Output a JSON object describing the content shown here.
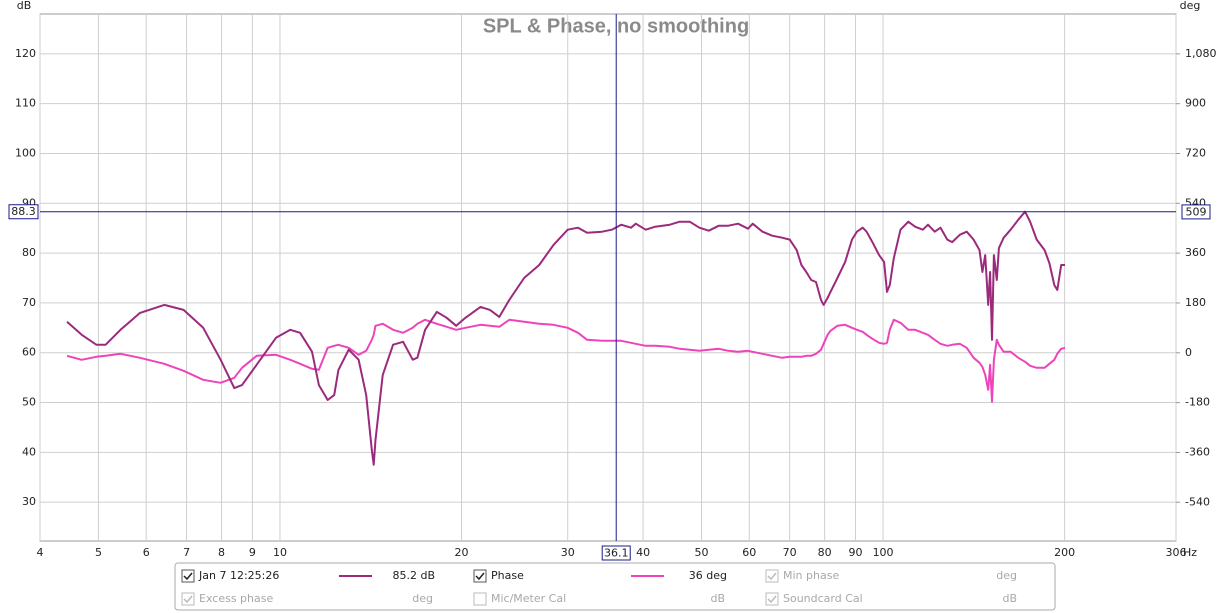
{
  "chart_data": {
    "type": "line",
    "title": "SPL & Phase, no smoothing",
    "y_unit": "dB",
    "y2_unit": "deg",
    "x_unit": "Hz",
    "xscale": "log",
    "grid": true,
    "xlim": [
      4,
      306
    ],
    "xticks": [
      4,
      5,
      6,
      7,
      8,
      9,
      10,
      20,
      30,
      40,
      50,
      60,
      70,
      80,
      90,
      100,
      200,
      306
    ],
    "ylim": [
      22.2,
      128
    ],
    "yticks": [
      30,
      40,
      50,
      60,
      70,
      80,
      90,
      100,
      110,
      120
    ],
    "y2lim": [
      -680,
      1224
    ],
    "y2ticks": [
      -540,
      -360,
      -180,
      0,
      180,
      360,
      540,
      720,
      900,
      {
        "value": 1080,
        "label": "1,080"
      }
    ],
    "cursor": {
      "x": 36.1,
      "y": 88.3,
      "y2": 509,
      "color": "#1a1a8c"
    },
    "x": [
      4.435,
      4.69,
      4.96,
      5.14,
      5.44,
      5.86,
      6.43,
      6.92,
      7.46,
      7.97,
      8.4,
      8.65,
      9.15,
      9.85,
      10.4,
      10.8,
      11.3,
      11.6,
      12.0,
      12.3,
      12.5,
      13.0,
      13.5,
      13.9,
      14.2,
      14.3,
      14.4,
      14.8,
      15.4,
      16.0,
      16.6,
      16.9,
      17.4,
      18.2,
      18.9,
      19.6,
      20.3,
      21.5,
      22.3,
      23.1,
      24.0,
      25.4,
      26.9,
      28.4,
      30.0,
      31.2,
      32.3,
      34.2,
      35.5,
      36.8,
      38.2,
      38.9,
      40.4,
      41.9,
      44.3,
      46.0,
      47.8,
      49.6,
      51.4,
      53.4,
      55.4,
      57.5,
      59.7,
      60.8,
      63.1,
      65.5,
      68.0,
      70.0,
      71.9,
      73.2,
      74.6,
      76.0,
      77.4,
      78.9,
      79.7,
      80.9,
      81.8,
      84.0,
      86.5,
      88.8,
      90.5,
      92.5,
      93.9,
      96.0,
      98.5,
      100.4,
      101.5,
      102.6,
      104.2,
      106.9,
      110.1,
      113.0,
      116.4,
      118.7,
      121.8,
      124.5,
      127.8,
      130.2,
      134.1,
      137.6,
      141.3,
      144.5,
      146.1,
      147.7,
      149.4,
      150.5,
      151.6,
      152.7,
      154.4,
      155.6,
      158.5,
      162.7,
      167.6,
      172.0,
      175.3,
      179.8,
      185.3,
      188.7,
      192.3,
      194.5,
      197.4,
      200.3
    ],
    "series": [
      {
        "name": "Jan 7 12:25:26",
        "color": "#9b2a7d",
        "checked": true,
        "readout": "85.2 dB",
        "values": [
          66.2,
          63.6,
          61.6,
          61.6,
          64.6,
          68.0,
          69.6,
          68.6,
          65.0,
          58.6,
          52.9,
          53.5,
          57.6,
          63.0,
          64.6,
          64.0,
          60.2,
          53.5,
          50.5,
          51.5,
          56.5,
          60.6,
          58.6,
          51.5,
          40.5,
          37.5,
          42.5,
          55.5,
          61.6,
          62.2,
          58.6,
          59.0,
          64.6,
          68.2,
          67.0,
          65.4,
          67.0,
          69.2,
          68.6,
          67.2,
          70.6,
          75.0,
          77.6,
          81.6,
          84.7,
          85.1,
          84.1,
          84.3,
          84.7,
          85.7,
          85.1,
          85.9,
          84.7,
          85.3,
          85.7,
          86.3,
          86.3,
          85.1,
          84.5,
          85.5,
          85.5,
          85.9,
          84.9,
          85.9,
          84.3,
          83.5,
          83.1,
          82.7,
          80.6,
          77.6,
          76.2,
          74.6,
          74.2,
          70.6,
          69.6,
          71.0,
          72.2,
          75.0,
          78.2,
          82.7,
          84.3,
          85.1,
          84.3,
          82.2,
          79.6,
          78.2,
          72.2,
          73.6,
          79.0,
          84.7,
          86.3,
          85.3,
          84.7,
          85.7,
          84.3,
          85.1,
          82.7,
          82.2,
          83.7,
          84.3,
          82.7,
          80.6,
          76.2,
          79.6,
          69.6,
          76.2,
          62.6,
          79.6,
          74.6,
          81.0,
          83.1,
          84.7,
          86.7,
          88.3,
          86.3,
          82.7,
          80.6,
          78.0,
          73.6,
          72.6,
          77.6,
          77.6
        ]
      },
      {
        "name": "Phase",
        "color": "#ee44bb",
        "axis": "y2",
        "checked": true,
        "readout": "36 deg",
        "values": [
          -10.8,
          -25.3,
          -14.5,
          -10.8,
          -3.6,
          -18.1,
          -39.8,
          -65.1,
          -97.6,
          -108.4,
          -90.4,
          -54.2,
          -10.8,
          -7.2,
          -25.3,
          -39.8,
          -57.8,
          -61.4,
          18.1,
          25.3,
          28.9,
          18.1,
          -7.2,
          7.2,
          47.0,
          65.1,
          97.6,
          104.8,
          83.1,
          72.3,
          90.4,
          104.8,
          119.3,
          104.8,
          94.0,
          83.1,
          90.4,
          101.2,
          97.6,
          94.0,
          119.3,
          112.0,
          104.8,
          101.2,
          90.4,
          72.3,
          47.0,
          43.4,
          43.4,
          43.4,
          36.1,
          32.5,
          25.3,
          25.3,
          21.7,
          14.5,
          10.8,
          7.2,
          10.8,
          14.5,
          7.2,
          3.6,
          7.2,
          3.6,
          -3.6,
          -10.8,
          -18.1,
          -14.5,
          -14.5,
          -14.5,
          -10.8,
          -10.8,
          -3.6,
          10.8,
          32.5,
          65.1,
          79.5,
          97.6,
          101.2,
          90.4,
          83.1,
          75.9,
          65.1,
          50.6,
          36.1,
          32.5,
          36.1,
          83.1,
          119.3,
          108.4,
          83.1,
          83.1,
          72.3,
          65.1,
          47.0,
          32.5,
          25.3,
          28.9,
          32.5,
          18.1,
          -18.1,
          -36.1,
          -50.6,
          -79.5,
          -133.7,
          -43.4,
          -177.1,
          -25.3,
          47.0,
          28.9,
          3.6,
          3.6,
          -18.1,
          -32.5,
          -47.0,
          -54.2,
          -54.2,
          -39.8,
          -25.3,
          -3.6,
          14.5,
          18.1
        ]
      }
    ],
    "inactive_entries": [
      {
        "name": "Min phase",
        "unit": "deg",
        "checked": true
      },
      {
        "name": "Excess phase",
        "unit": "deg",
        "checked": true
      },
      {
        "name": "Mic/Meter Cal",
        "unit": "dB",
        "checked": false
      },
      {
        "name": "Soundcard Cal",
        "unit": "dB",
        "checked": true
      }
    ]
  }
}
